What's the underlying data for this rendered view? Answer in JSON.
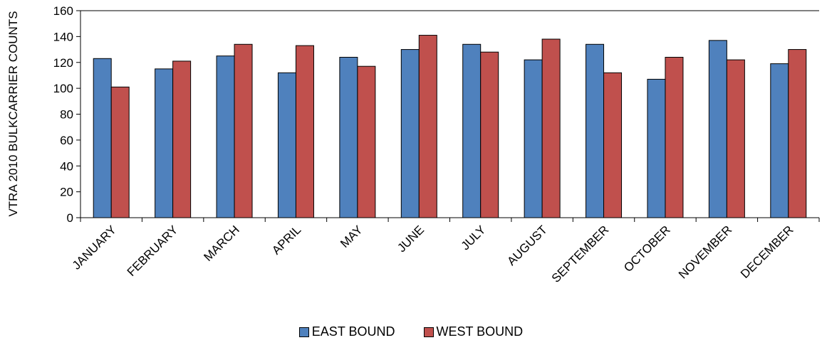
{
  "chart_data": {
    "type": "bar",
    "title": "",
    "xlabel": "",
    "ylabel": "VTRA 2010 BULKCARRIER COUNTS",
    "ylim": [
      0,
      160
    ],
    "yticks": [
      0,
      20,
      40,
      60,
      80,
      100,
      120,
      140,
      160
    ],
    "grid": false,
    "legend_position": "bottom",
    "categories": [
      "JANUARY",
      "FEBRUARY",
      "MARCH",
      "APRIL",
      "MAY",
      "JUNE",
      "JULY",
      "AUGUST",
      "SEPTEMBER",
      "OCTOBER",
      "NOVEMBER",
      "DECEMBER"
    ],
    "series": [
      {
        "name": "EAST BOUND",
        "color": "#4F81BD",
        "values": [
          123,
          115,
          125,
          112,
          124,
          130,
          134,
          122,
          134,
          107,
          137,
          119
        ]
      },
      {
        "name": "WEST BOUND",
        "color": "#C0504D",
        "values": [
          101,
          121,
          134,
          133,
          117,
          141,
          128,
          138,
          112,
          124,
          122,
          130
        ]
      }
    ]
  }
}
